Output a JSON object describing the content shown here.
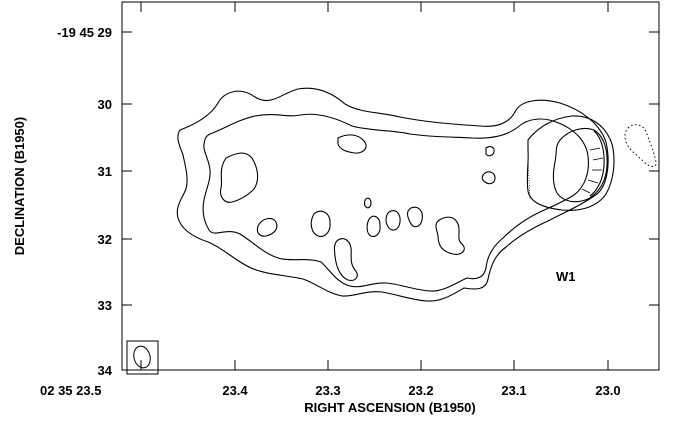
{
  "chart_data": {
    "type": "contour",
    "xlabel": "RIGHT ASCENSION (B1950)",
    "ylabel": "DECLINATION (B1950)",
    "x_axis": {
      "ticks": [
        23.5,
        23.4,
        23.3,
        23.2,
        23.1,
        23.0
      ],
      "tick_labels": [
        "02 35 23.5",
        "23.4",
        "23.3",
        "23.2",
        "23.1",
        "23.0"
      ],
      "xlim": [
        23.52,
        22.955
      ]
    },
    "y_axis": {
      "ticks": [
        29,
        30,
        31,
        32,
        33,
        34
      ],
      "tick_labels": [
        "-19 45 29",
        "30",
        "31",
        "32",
        "33",
        "34"
      ],
      "ylim": [
        28.6,
        34.05
      ]
    },
    "annotations": [
      {
        "text": "W1",
        "x": 23.037,
        "y": 32.45
      }
    ],
    "beam": {
      "x": 23.49,
      "y": 33.72,
      "major": 0.27,
      "minor": 0.1
    }
  }
}
